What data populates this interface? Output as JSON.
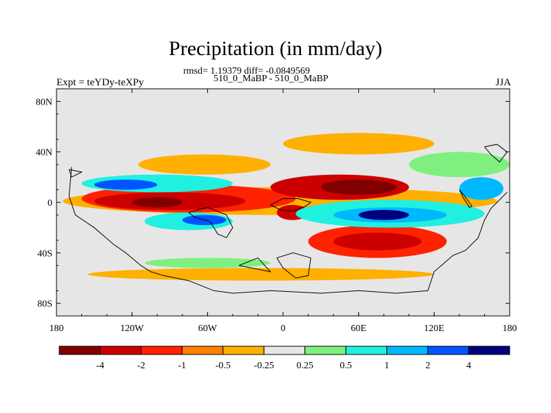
{
  "chart_data": {
    "type": "heatmap",
    "title": "Precipitation (in mm/day)",
    "stats": "rmsd= 1.19379 diff= -0.0849569",
    "runs": "510_0_MaBP - 510_0_MaBP",
    "left_label": "Expt = teYDy-teXPy",
    "right_label": "JJA",
    "x_range": [
      -180,
      180
    ],
    "y_range": [
      -90,
      90
    ],
    "x_ticks": [
      {
        "value": -180,
        "label": "180"
      },
      {
        "value": -120,
        "label": "120W"
      },
      {
        "value": -60,
        "label": "60W"
      },
      {
        "value": 0,
        "label": "0"
      },
      {
        "value": 60,
        "label": "60E"
      },
      {
        "value": 120,
        "label": "120E"
      },
      {
        "value": 180,
        "label": "180"
      }
    ],
    "y_ticks": [
      {
        "value": 80,
        "label": "80N"
      },
      {
        "value": 40,
        "label": "40N"
      },
      {
        "value": 0,
        "label": "0"
      },
      {
        "value": -40,
        "label": "40S"
      },
      {
        "value": -80,
        "label": "80S"
      }
    ],
    "colorbar": {
      "levels": [
        -4,
        -2,
        -1,
        -0.5,
        -0.25,
        0.25,
        0.5,
        1,
        2,
        4
      ],
      "labels": [
        "-4",
        "-2",
        "-1",
        "-0.5",
        "-0.25",
        "0.25",
        "0.5",
        "1",
        "2",
        "4"
      ],
      "colors": [
        "#800000",
        "#cc0000",
        "#ff2200",
        "#ff7f00",
        "#ffb000",
        "#e6e6e6",
        "#7ff07f",
        "#20f0e0",
        "#00b8ff",
        "#0055ff",
        "#00007f"
      ]
    },
    "regions": [
      {
        "lon": [
          -175,
          170
        ],
        "lat": [
          -10,
          12
        ],
        "value": -0.3
      },
      {
        "lon": [
          -115,
          -10
        ],
        "lat": [
          22,
          38
        ],
        "value": -0.3
      },
      {
        "lon": [
          0,
          120
        ],
        "lat": [
          38,
          55
        ],
        "value": -0.3
      },
      {
        "lon": [
          -160,
          10
        ],
        "lat": [
          -8,
          14
        ],
        "value": -1.2
      },
      {
        "lon": [
          -150,
          -30
        ],
        "lat": [
          -6,
          8
        ],
        "value": -3.0
      },
      {
        "lon": [
          -120,
          -80
        ],
        "lat": [
          -4,
          4
        ],
        "value": -5.0
      },
      {
        "lon": [
          -10,
          100
        ],
        "lat": [
          2,
          22
        ],
        "value": -3.0
      },
      {
        "lon": [
          30,
          90
        ],
        "lat": [
          6,
          18
        ],
        "value": -5.0
      },
      {
        "lon": [
          -5,
          20
        ],
        "lat": [
          -14,
          -2
        ],
        "value": -3.0
      },
      {
        "lon": [
          20,
          130
        ],
        "lat": [
          -44,
          -18
        ],
        "value": -1.2
      },
      {
        "lon": [
          40,
          110
        ],
        "lat": [
          -38,
          -24
        ],
        "value": -3.0
      },
      {
        "lon": [
          -160,
          -40
        ],
        "lat": [
          8,
          22
        ],
        "value": 0.7
      },
      {
        "lon": [
          -150,
          -100
        ],
        "lat": [
          10,
          18
        ],
        "value": 3.0
      },
      {
        "lon": [
          -110,
          -40
        ],
        "lat": [
          -22,
          -8
        ],
        "value": 0.7
      },
      {
        "lon": [
          -80,
          -45
        ],
        "lat": [
          -18,
          -10
        ],
        "value": 3.0
      },
      {
        "lon": [
          10,
          160
        ],
        "lat": [
          -20,
          2
        ],
        "value": 0.7
      },
      {
        "lon": [
          40,
          130
        ],
        "lat": [
          -16,
          -4
        ],
        "value": 1.5
      },
      {
        "lon": [
          60,
          100
        ],
        "lat": [
          -14,
          -6
        ],
        "value": 5.0
      },
      {
        "lon": [
          140,
          175
        ],
        "lat": [
          2,
          20
        ],
        "value": 1.5
      },
      {
        "lon": [
          100,
          180
        ],
        "lat": [
          20,
          40
        ],
        "value": 0.3
      },
      {
        "lon": [
          -155,
          120
        ],
        "lat": [
          -62,
          -52
        ],
        "value": -0.3
      },
      {
        "lon": [
          -110,
          -10
        ],
        "lat": [
          -52,
          -44
        ],
        "value": 0.3
      }
    ],
    "coastlines": [
      [
        [
          -168,
          28
        ],
        [
          -170,
          5
        ],
        [
          -165,
          -10
        ],
        [
          -150,
          -20
        ],
        [
          -135,
          -33
        ],
        [
          -125,
          -40
        ],
        [
          -113,
          -50
        ],
        [
          -105,
          -55
        ],
        [
          -95,
          -58
        ],
        [
          -75,
          -62
        ],
        [
          -55,
          -70
        ],
        [
          -40,
          -72
        ],
        [
          -10,
          -70
        ],
        [
          30,
          -72
        ],
        [
          60,
          -70
        ],
        [
          90,
          -72
        ],
        [
          115,
          -70
        ],
        [
          120,
          -55
        ],
        [
          135,
          -42
        ],
        [
          145,
          -38
        ],
        [
          155,
          -28
        ],
        [
          160,
          -14
        ],
        [
          165,
          -5
        ],
        [
          170,
          0
        ],
        [
          178,
          8
        ]
      ],
      [
        [
          -75,
          -8
        ],
        [
          -70,
          -12
        ],
        [
          -58,
          -15
        ],
        [
          -52,
          -25
        ],
        [
          -45,
          -28
        ],
        [
          -40,
          -20
        ],
        [
          -45,
          -10
        ],
        [
          -60,
          -4
        ],
        [
          -75,
          -8
        ]
      ],
      [
        [
          -35,
          -50
        ],
        [
          -10,
          -55
        ],
        [
          -20,
          -44
        ],
        [
          -35,
          -50
        ]
      ],
      [
        [
          -5,
          -44
        ],
        [
          0,
          -52
        ],
        [
          10,
          -60
        ],
        [
          20,
          -58
        ],
        [
          22,
          -44
        ],
        [
          8,
          -40
        ],
        [
          -5,
          -44
        ]
      ],
      [
        [
          -10,
          -2
        ],
        [
          -2,
          -6
        ],
        [
          8,
          -7
        ],
        [
          18,
          -3
        ],
        [
          22,
          0
        ],
        [
          12,
          3
        ],
        [
          0,
          3
        ],
        [
          -10,
          -2
        ]
      ],
      [
        [
          140,
          10
        ],
        [
          145,
          4
        ],
        [
          150,
          -3
        ],
        [
          148,
          -4
        ],
        [
          143,
          4
        ],
        [
          140,
          10
        ]
      ],
      [
        [
          160,
          44
        ],
        [
          170,
          46
        ],
        [
          178,
          40
        ],
        [
          172,
          32
        ],
        [
          165,
          38
        ],
        [
          160,
          44
        ]
      ],
      [
        [
          -170,
          26
        ],
        [
          -160,
          24
        ],
        [
          -168,
          20
        ],
        [
          -170,
          26
        ]
      ]
    ]
  }
}
